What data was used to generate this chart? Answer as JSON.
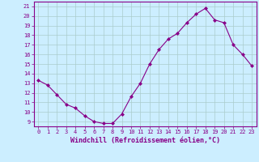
{
  "hours": [
    0,
    1,
    2,
    3,
    4,
    5,
    6,
    7,
    8,
    9,
    10,
    11,
    12,
    13,
    14,
    15,
    16,
    17,
    18,
    19,
    20,
    21,
    22,
    23
  ],
  "windchill": [
    13.3,
    12.8,
    11.8,
    10.8,
    10.4,
    9.6,
    9.0,
    8.8,
    8.8,
    9.8,
    11.6,
    13.0,
    15.0,
    16.5,
    17.6,
    18.2,
    19.3,
    20.2,
    20.8,
    19.6,
    19.3,
    17.0,
    16.0,
    14.8
  ],
  "line_color": "#880088",
  "marker": "D",
  "marker_size": 2,
  "bg_color": "#cceeff",
  "grid_color": "#aacccc",
  "axis_color": "#880088",
  "tick_color": "#880088",
  "xlabel": "Windchill (Refroidissement éolien,°C)",
  "ylabel": "",
  "ylim": [
    8.5,
    21.5
  ],
  "yticks": [
    9,
    10,
    11,
    12,
    13,
    14,
    15,
    16,
    17,
    18,
    19,
    20,
    21
  ],
  "font_color": "#880088",
  "tick_fontsize": 5,
  "xlabel_fontsize": 6
}
